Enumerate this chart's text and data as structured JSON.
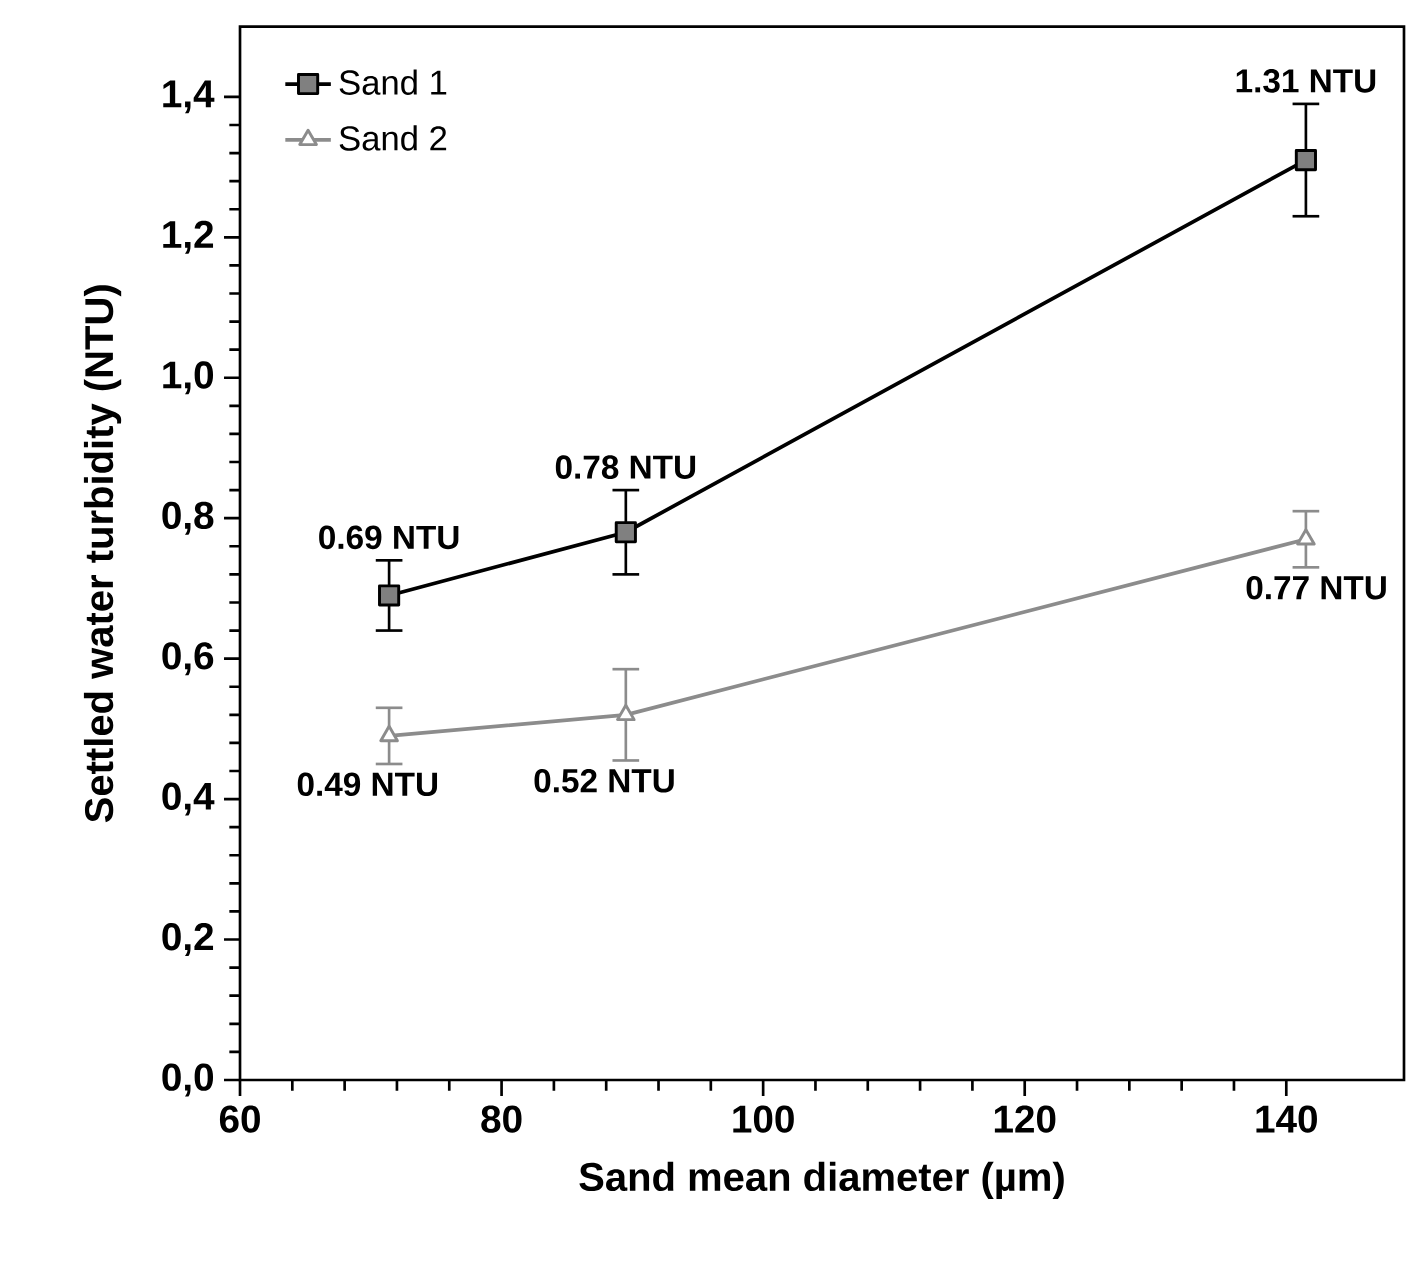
{
  "chart_data": {
    "type": "line",
    "xlabel": "Sand mean diameter (µm)",
    "ylabel": "Settled water turbidity (NTU)",
    "xlim": [
      60,
      149
    ],
    "xticks": [
      60,
      80,
      100,
      120,
      140
    ],
    "ylim": [
      0,
      1.5
    ],
    "yticks": [
      {
        "value": 0,
        "label": "0,0"
      },
      {
        "value": 0.2,
        "label": "0,2"
      },
      {
        "value": 0.4,
        "label": "0,4"
      },
      {
        "value": 0.6,
        "label": "0,6"
      },
      {
        "value": 0.8,
        "label": "0,8"
      },
      {
        "value": 1.0,
        "label": "1,0"
      },
      {
        "value": 1.2,
        "label": "1,2"
      },
      {
        "value": 1.4,
        "label": "1,4"
      }
    ],
    "grid": false,
    "legend": "top left",
    "line_style": "solid",
    "series": [
      {
        "name": "Sand 1",
        "color": "#000000",
        "marker": "square",
        "x": [
          71.4,
          89.5,
          141.5
        ],
        "values": [
          0.69,
          0.78,
          1.31
        ],
        "errors": [
          0.05,
          0.06,
          0.08
        ],
        "value_labels": [
          "0.69 NTU",
          "0.78 NTU",
          "1.31 NTU"
        ]
      },
      {
        "name": "Sand 2",
        "color": "#8c8c8c",
        "marker": "triangle",
        "x": [
          71.4,
          89.5,
          141.5
        ],
        "values": [
          0.49,
          0.52,
          0.77
        ],
        "errors": [
          0.04,
          0.065,
          0.04
        ],
        "value_labels": [
          "0.49 NTU",
          "0.52 NTU",
          "0.77 NTU"
        ]
      }
    ]
  }
}
